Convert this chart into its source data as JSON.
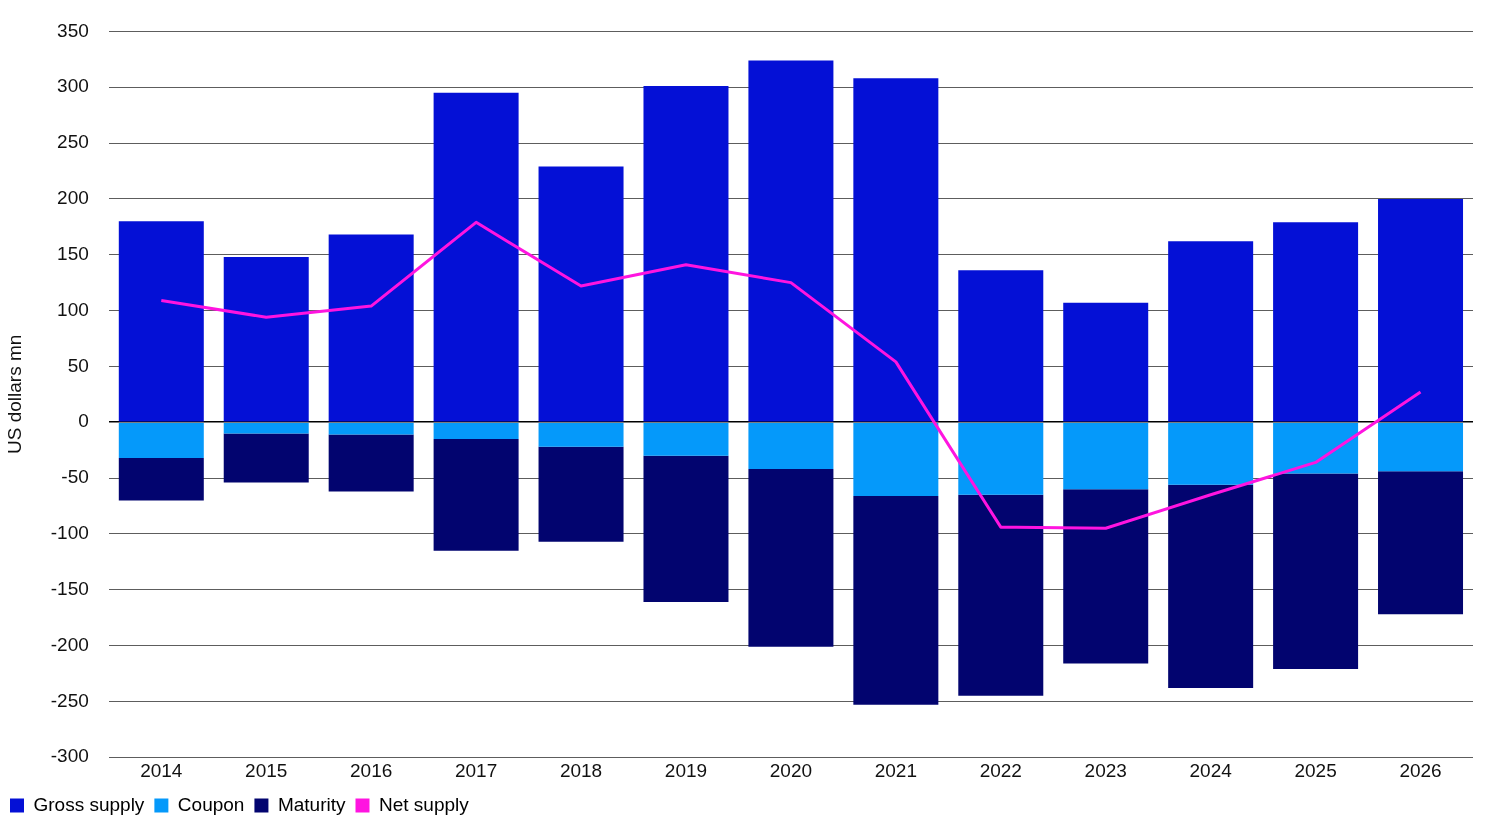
{
  "chart_data": {
    "type": "bar",
    "stacked": true,
    "ylabel": "US dollars mn",
    "categories": [
      "2014",
      "2015",
      "2016",
      "2017",
      "2018",
      "2019",
      "2020",
      "2021",
      "2022",
      "2023",
      "2024",
      "2025",
      "2026"
    ],
    "series": [
      {
        "name": "Gross supply",
        "color": "#0410d6",
        "values": [
          180,
          148,
          168,
          295,
          229,
          301,
          324,
          308,
          136,
          107,
          162,
          179,
          200
        ]
      },
      {
        "name": "Coupon",
        "color": "#0599fa",
        "values": [
          -32,
          -10,
          -11,
          -15,
          -22,
          -30,
          -42,
          -66,
          -65,
          -60,
          -56,
          -46,
          -44
        ]
      },
      {
        "name": "Maturity",
        "color": "#02046f",
        "values": [
          -38,
          -44,
          -51,
          -100,
          -85,
          -131,
          -159,
          -187,
          -180,
          -156,
          -182,
          -175,
          -128
        ]
      },
      {
        "name": "Net supply",
        "type": "line",
        "color": "#ff14e0",
        "values": [
          109,
          94,
          104,
          179,
          122,
          141,
          125,
          54,
          -94,
          -95,
          -65,
          -36,
          27
        ]
      }
    ],
    "ylim": [
      -300,
      350
    ],
    "yticks": [
      -300,
      -250,
      -200,
      -150,
      -100,
      -50,
      0,
      50,
      100,
      150,
      200,
      250,
      300,
      350
    ],
    "grid": "y",
    "legend": "bottom left",
    "marker": "none"
  }
}
